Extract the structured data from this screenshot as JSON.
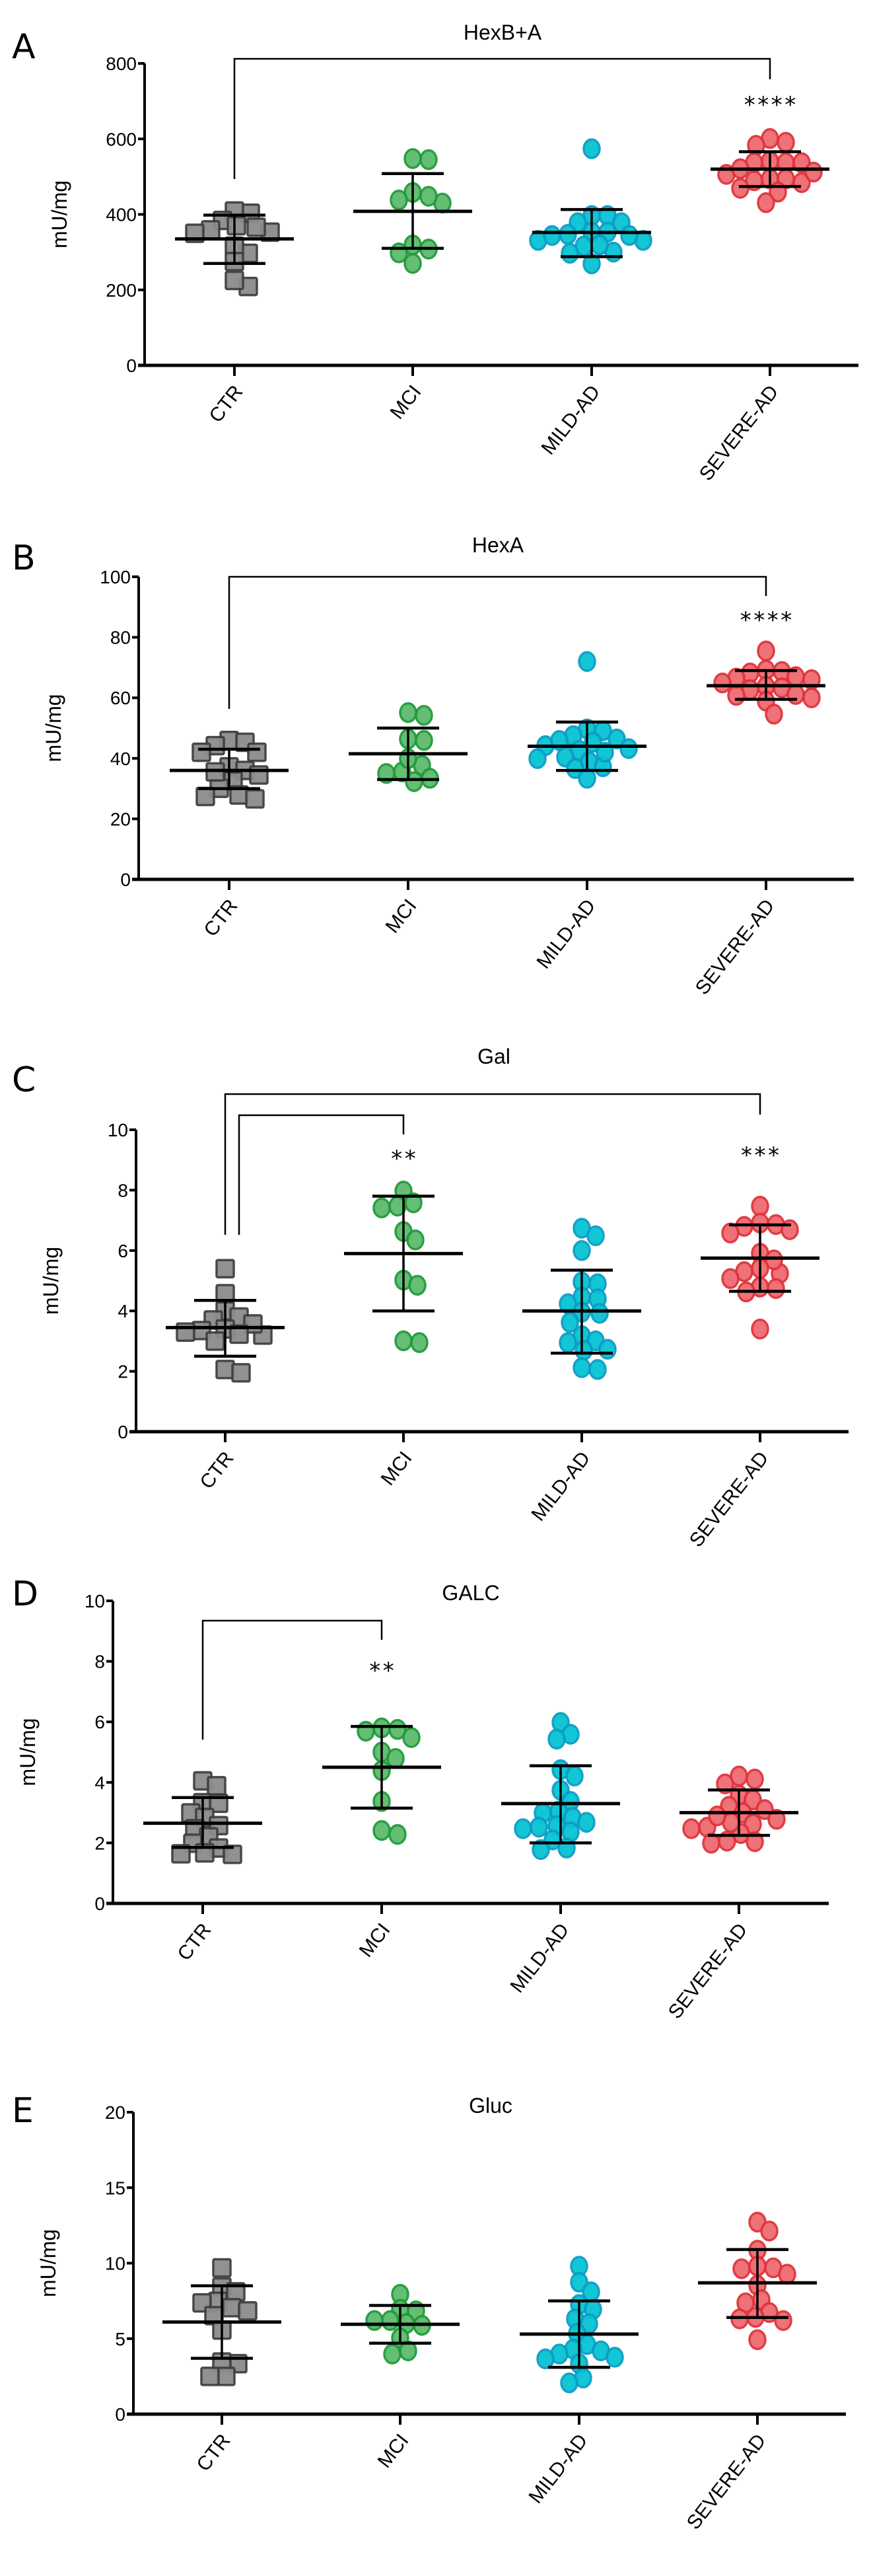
{
  "groups": [
    "CTR",
    "MCI",
    "MILD-AD",
    "SEVERE-AD"
  ],
  "group_styles": [
    {
      "marker": "square",
      "fill": "#8c8c8c",
      "stroke": "#3f3f3f"
    },
    {
      "marker": "circle",
      "fill": "#5dbb6d",
      "stroke": "#1f9a3a"
    },
    {
      "marker": "circle",
      "fill": "#06c3d3",
      "stroke": "#0a9cc4"
    },
    {
      "marker": "circle",
      "fill": "#ee6b70",
      "stroke": "#e0323b"
    }
  ],
  "chart_data": [
    {
      "type": "scatter",
      "panel": "A",
      "title": "HexB+A",
      "ylabel": "mU/mg",
      "ylim": [
        0,
        800
      ],
      "yticks": [
        0,
        200,
        400,
        600,
        800
      ],
      "categories": [
        "CTR",
        "MCI",
        "MILD-AD",
        "SEVERE-AD"
      ],
      "series": [
        {
          "name": "CTR",
          "values": [
            403,
            409,
            384,
            370,
            359,
            350,
            353,
            366,
            297,
            316,
            275,
            209,
            225
          ],
          "mean": 335,
          "sd_low": 270,
          "sd_high": 398
        },
        {
          "name": "MCI",
          "values": [
            545,
            548,
            458,
            438,
            430,
            448,
            308,
            298,
            319,
            270
          ],
          "mean": 408,
          "sd_low": 310,
          "sd_high": 508
        },
        {
          "name": "MILD-AD",
          "values": [
            574,
            397,
            397,
            378,
            378,
            353,
            347,
            353,
            331,
            331,
            344,
            316,
            300,
            319,
            297,
            269,
            344
          ],
          "mean": 352,
          "sd_low": 288,
          "sd_high": 413
        },
        {
          "name": "SEVERE-AD",
          "values": [
            601,
            583,
            591,
            537,
            537,
            537,
            541,
            506,
            494,
            494,
            521,
            489,
            484,
            469,
            459,
            431,
            512
          ],
          "mean": 520,
          "sd_low": 474,
          "sd_high": 566
        }
      ],
      "comparisons": [
        {
          "from": "CTR",
          "to": "SEVERE-AD",
          "label": "****"
        }
      ]
    },
    {
      "type": "scatter",
      "panel": "B",
      "title": "HexA",
      "ylabel": "mU/mg",
      "ylim": [
        0,
        100
      ],
      "yticks": [
        0,
        20,
        40,
        60,
        80,
        100
      ],
      "categories": [
        "CTR",
        "MCI",
        "MILD-AD",
        "SEVERE-AD"
      ],
      "series": [
        {
          "name": "CTR",
          "values": [
            45.9,
            45.3,
            44.2,
            42,
            42,
            37.2,
            36,
            34.5,
            32.5,
            30.1,
            27.9,
            27.4,
            26.6,
            35.5
          ],
          "mean": 36,
          "sd_low": 30,
          "sd_high": 43
        },
        {
          "name": "MCI",
          "values": [
            54.2,
            55.1,
            46.4,
            45.9,
            37.7,
            35,
            33.4,
            32.3,
            35.5,
            39.9
          ],
          "mean": 41.5,
          "sd_low": 33,
          "sd_high": 50
        },
        {
          "name": "MILD-AD",
          "values": [
            72,
            49.7,
            49.1,
            47.5,
            46.4,
            45.3,
            44.2,
            43.2,
            42.6,
            40.4,
            39.9,
            38.8,
            37.2,
            36.6,
            33.4,
            45.9,
            42
          ],
          "mean": 44,
          "sd_low": 36,
          "sd_high": 52
        },
        {
          "name": "SEVERE-AD",
          "values": [
            75.5,
            69.2,
            68.7,
            68.2,
            67,
            66,
            63.8,
            63.3,
            62.7,
            61.1,
            60.8,
            60,
            58.9,
            54.6,
            66.5,
            64.9
          ],
          "mean": 64,
          "sd_low": 59.5,
          "sd_high": 69
        }
      ],
      "comparisons": [
        {
          "from": "CTR",
          "to": "SEVERE-AD",
          "label": "****"
        }
      ]
    },
    {
      "type": "scatter",
      "panel": "C",
      "title": "Gal",
      "ylabel": "mU/mg",
      "ylim": [
        0,
        10
      ],
      "yticks": [
        0,
        2,
        4,
        6,
        8,
        10
      ],
      "categories": [
        "CTR",
        "MCI",
        "MILD-AD",
        "SEVERE-AD"
      ],
      "series": [
        {
          "name": "CTR",
          "values": [
            5.4,
            4.57,
            4.0,
            3.8,
            3.7,
            3.4,
            3.35,
            3.3,
            3.2,
            3.0,
            2.06,
            1.95,
            3.57,
            3.23
          ],
          "mean": 3.45,
          "sd_low": 2.5,
          "sd_high": 4.35
        },
        {
          "name": "MCI",
          "values": [
            7.97,
            7.58,
            7.47,
            7.41,
            6.63,
            6.35,
            5.02,
            4.85,
            3.01,
            2.95
          ],
          "mean": 5.9,
          "sd_low": 4.0,
          "sd_high": 7.8
        },
        {
          "name": "MILD-AD",
          "values": [
            6.74,
            6.49,
            6.0,
            4.96,
            4.9,
            4.46,
            4.4,
            4.24,
            3.96,
            3.92,
            3.62,
            3.18,
            3.01,
            2.95,
            2.73,
            2.7,
            2.12,
            2.06
          ],
          "mean": 4.0,
          "sd_low": 2.6,
          "sd_high": 5.35
        },
        {
          "name": "SEVERE-AD",
          "values": [
            7.47,
            6.91,
            6.86,
            6.8,
            6.69,
            6.58,
            5.91,
            5.41,
            5.3,
            5.24,
            5.07,
            4.79,
            4.74,
            4.63,
            3.4,
            5.69
          ],
          "mean": 5.75,
          "sd_low": 4.65,
          "sd_high": 6.85
        }
      ],
      "comparisons": [
        {
          "from": "CTR",
          "to": "MCI",
          "label": "**"
        },
        {
          "from": "CTR",
          "to": "SEVERE-AD",
          "label": "***"
        }
      ]
    },
    {
      "type": "scatter",
      "panel": "D",
      "title": "GALC",
      "ylabel": "mU/mg",
      "ylim": [
        0,
        10
      ],
      "yticks": [
        0,
        2,
        4,
        6,
        8,
        10
      ],
      "categories": [
        "CTR",
        "MCI",
        "MILD-AD",
        "SEVERE-AD"
      ],
      "series": [
        {
          "name": "CTR",
          "values": [
            4.05,
            3.89,
            3.33,
            3.31,
            2.99,
            2.84,
            2.57,
            2.47,
            2.2,
            1.99,
            1.83,
            1.64,
            1.62,
            1.67
          ],
          "mean": 2.65,
          "sd_low": 1.85,
          "sd_high": 3.5
        },
        {
          "name": "MCI",
          "values": [
            5.8,
            5.75,
            5.69,
            5.48,
            5.0,
            4.79,
            4.39,
            3.37,
            2.41,
            2.28
          ],
          "mean": 4.5,
          "sd_low": 3.15,
          "sd_high": 5.85
        },
        {
          "name": "MILD-AD",
          "values": [
            5.98,
            5.59,
            5.43,
            4.42,
            4.21,
            3.74,
            3.37,
            3.05,
            2.99,
            2.84,
            2.68,
            2.57,
            2.52,
            2.47,
            2.36,
            2.1,
            1.83,
            1.78
          ],
          "mean": 3.3,
          "sd_low": 2.0,
          "sd_high": 4.55
        },
        {
          "name": "SEVERE-AD",
          "values": [
            4.21,
            4.11,
            3.95,
            3.58,
            3.42,
            3.21,
            3.1,
            2.99,
            2.78,
            2.62,
            2.52,
            2.47,
            2.31,
            2.06,
            2.04,
            1.99,
            2.68,
            2.89
          ],
          "mean": 3.0,
          "sd_low": 2.25,
          "sd_high": 3.75
        }
      ],
      "comparisons": [
        {
          "from": "CTR",
          "to": "MCI",
          "label": "**"
        }
      ]
    },
    {
      "type": "scatter",
      "panel": "E",
      "title": "Gluc",
      "ylabel": "mU/mg",
      "ylim": [
        0,
        20
      ],
      "yticks": [
        0,
        5,
        10,
        15,
        20
      ],
      "categories": [
        "CTR",
        "MCI",
        "MILD-AD",
        "SEVERE-AD"
      ],
      "series": [
        {
          "name": "CTR",
          "values": [
            9.69,
            8.42,
            8.1,
            7.47,
            7.37,
            7.05,
            6.84,
            6.52,
            5.57,
            3.34,
            3.45,
            2.5,
            2.5
          ],
          "mean": 6.1,
          "sd_low": 3.7,
          "sd_high": 8.5
        },
        {
          "name": "MCI",
          "values": [
            7.94,
            6.94,
            6.84,
            6.2,
            5.99,
            5.88,
            6.2,
            5.04,
            4.19,
            3.98
          ],
          "mean": 5.95,
          "sd_low": 4.7,
          "sd_high": 7.2
        },
        {
          "name": "MILD-AD",
          "values": [
            9.8,
            8.74,
            8.1,
            7.26,
            6.94,
            6.31,
            5.99,
            5.35,
            4.61,
            4.3,
            4.19,
            3.98,
            3.77,
            3.66,
            3.34,
            2.39,
            2.07
          ],
          "mean": 5.3,
          "sd_low": 3.1,
          "sd_high": 7.5
        },
        {
          "name": "SEVERE-AD",
          "values": [
            12.72,
            12.13,
            10.86,
            9.8,
            9.69,
            9.63,
            9.27,
            8.53,
            7.58,
            7.37,
            6.73,
            6.41,
            6.31,
            6.2,
            4.93
          ],
          "mean": 8.7,
          "sd_low": 6.4,
          "sd_high": 10.9
        }
      ],
      "comparisons": []
    }
  ]
}
